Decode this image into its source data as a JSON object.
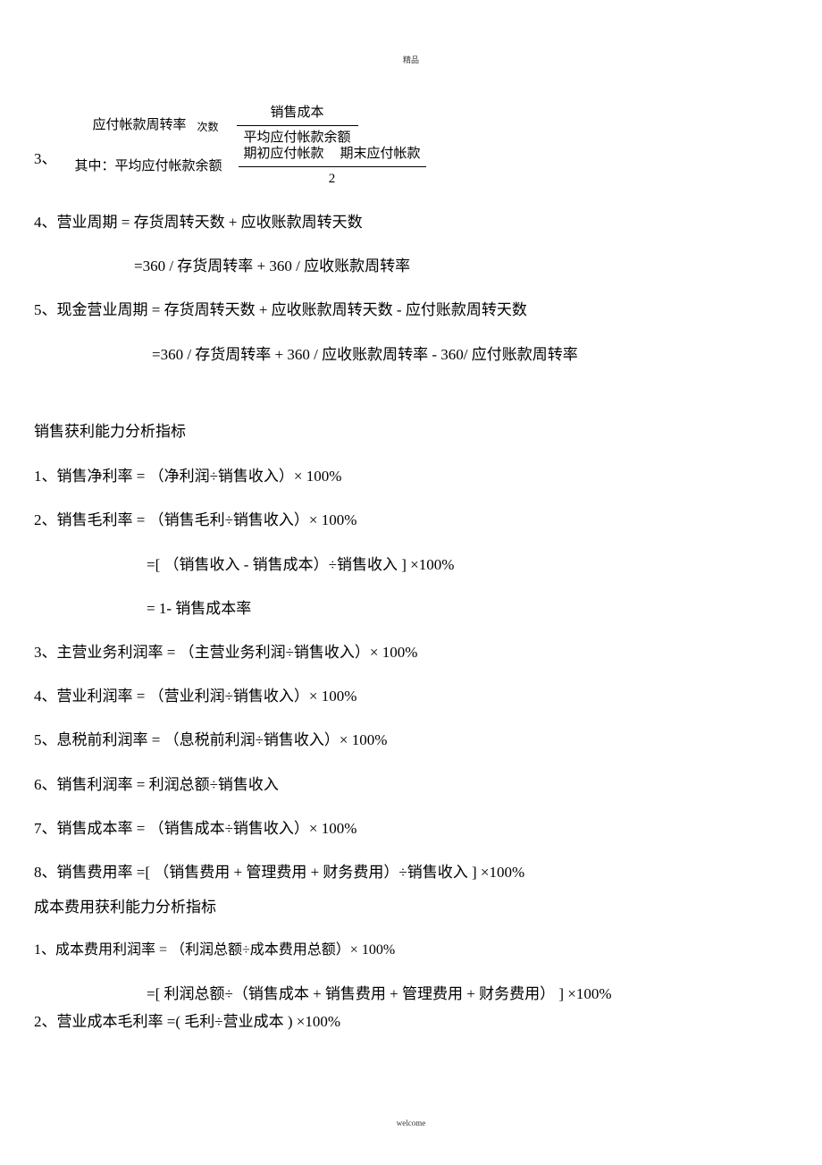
{
  "header": "精品",
  "footer": "welcome",
  "item3": {
    "num": "3、",
    "label": "应付帐款周转率",
    "unit": "次数",
    "frac1_top": "销售成本",
    "frac1_bot": "平均应付帐款余额",
    "where_label": "其中：平均应付帐款余额",
    "frac2_top_a": "期初应付帐款",
    "frac2_top_b": "期末应付帐款",
    "frac2_bot": "2"
  },
  "item4": {
    "line1": "4、营业周期   = 存货周转天数 + 应收账款周转天数",
    "line2": "=360 /    存货周转率  + 360 /    应收账款周转率"
  },
  "item5": {
    "line1": "5、现金营业周期 = 存货周转天数 + 应收账款周转天数 - 应付账款周转天数",
    "line2": "=360 /    存货周转率   + 360 /    应收账款周转率   - 360/    应付账款周转率"
  },
  "section1_title": "销售获利能力分析指标",
  "s1": {
    "i1": "1、销售净利率 = （净利润÷销售收入）× 100%",
    "i2": "2、销售毛利率 =  （销售毛利÷销售收入）× 100%",
    "i2b": "=[ （销售收入 - 销售成本）÷销售收入 ] ×100%",
    "i2c": "= 1- 销售成本率",
    "i3": "3、主营业务利润率 = （主营业务利润÷销售收入）× 100%",
    "i4": "4、营业利润率 = （营业利润÷销售收入）× 100%",
    "i5": "5、息税前利润率 = （息税前利润÷销售收入）× 100%",
    "i6": "6、销售利润率 = 利润总额÷销售收入",
    "i7": "7、销售成本率 = （销售成本÷销售收入）× 100%",
    "i8": "8、销售费用率 =[ （销售费用 + 管理费用 + 财务费用）÷销售收入 ] ×100%"
  },
  "section2_title": "成本费用获利能力分析指标",
  "s2": {
    "i1": "1、成本费用利润率 =  （利润总额÷成本费用总额）× 100%",
    "i1b": "=[ 利润总额÷（销售成本 + 销售费用 + 管理费用 + 财务费用） ] ×100%",
    "i2": "2、营业成本毛利率 =( 毛利÷营业成本 ) ×100%"
  },
  "s2_i1_font_small": true
}
